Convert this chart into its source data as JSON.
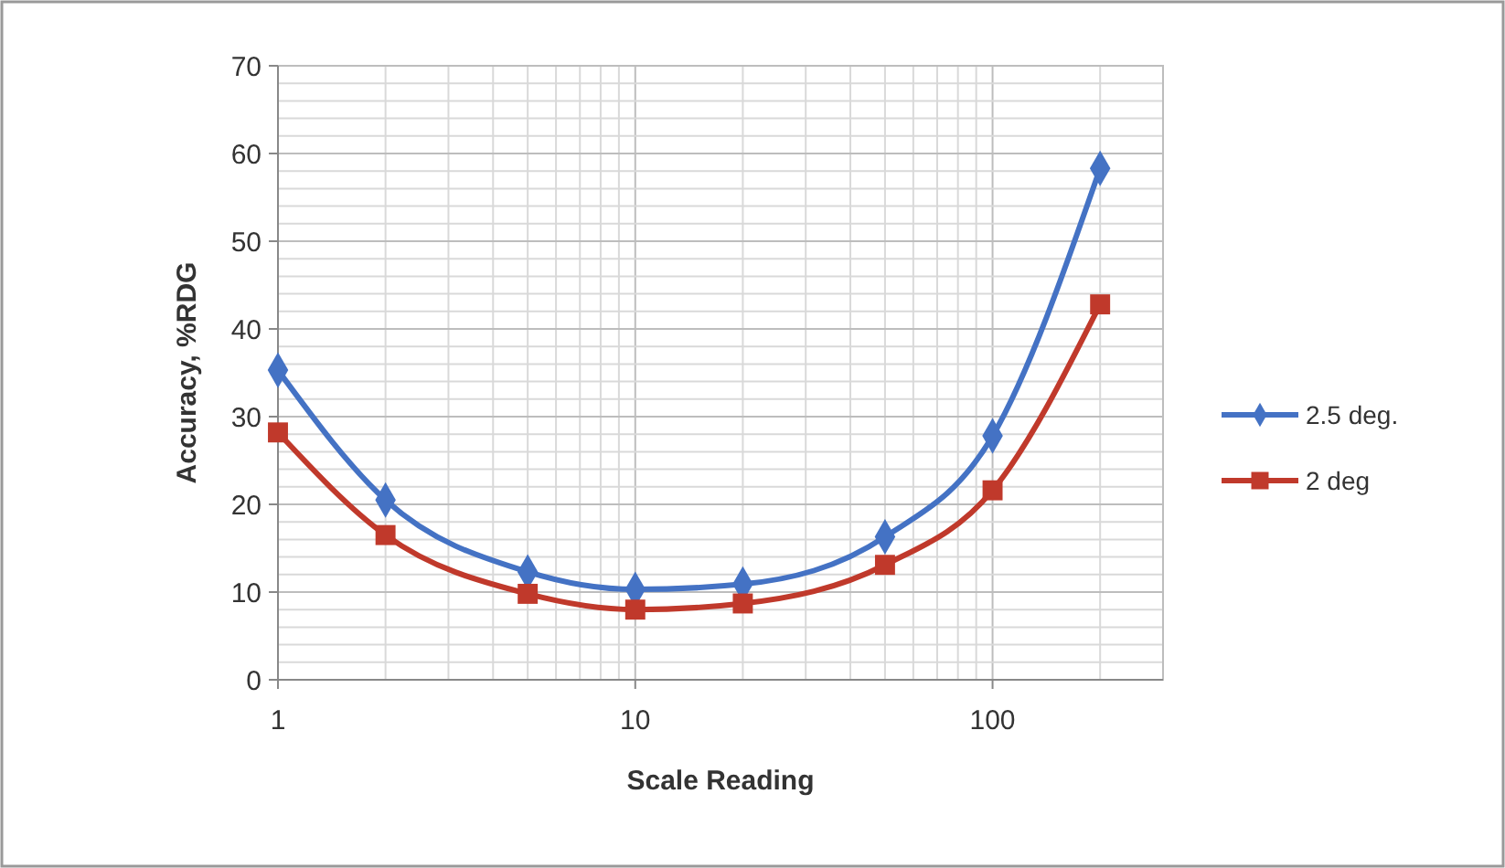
{
  "chart_data": {
    "type": "line",
    "xlabel": "Scale Reading",
    "ylabel": "Accuracy, %RDG",
    "x": [
      1,
      2,
      5,
      10,
      20,
      50,
      100,
      200
    ],
    "series": [
      {
        "name": "2.5 deg.",
        "color": "#4472c4",
        "marker": "diamond",
        "values": [
          35.3,
          20.5,
          12.3,
          10.3,
          10.9,
          16.3,
          27.8,
          58.3
        ]
      },
      {
        "name": "2 deg",
        "color": "#c0392b",
        "marker": "square",
        "values": [
          28.2,
          16.5,
          9.8,
          8.0,
          8.7,
          13.1,
          21.6,
          42.8
        ]
      }
    ],
    "log": "x",
    "xlim": [
      1,
      300
    ],
    "xticks": [
      1,
      {
        "value": 2,
        "label": null
      },
      {
        "value": 3,
        "label": null
      },
      {
        "value": 4,
        "label": null
      },
      {
        "value": 5,
        "label": null
      },
      {
        "value": 6,
        "label": null
      },
      {
        "value": 7,
        "label": null
      },
      {
        "value": 8,
        "label": null
      },
      {
        "value": 9,
        "label": null
      },
      10,
      {
        "value": 20,
        "label": null
      },
      {
        "value": 30,
        "label": null
      },
      {
        "value": 40,
        "label": null
      },
      {
        "value": 50,
        "label": null
      },
      {
        "value": 60,
        "label": null
      },
      {
        "value": 70,
        "label": null
      },
      {
        "value": 80,
        "label": null
      },
      {
        "value": 90,
        "label": null
      },
      100,
      {
        "value": 200,
        "label": null
      },
      {
        "value": 300,
        "label": null
      }
    ],
    "ylim": [
      0,
      70
    ],
    "yticks": [
      0,
      {
        "value": 2,
        "label": null
      },
      {
        "value": 4,
        "label": null
      },
      {
        "value": 6,
        "label": null
      },
      {
        "value": 8,
        "label": null
      },
      10,
      {
        "value": 12,
        "label": null
      },
      {
        "value": 14,
        "label": null
      },
      {
        "value": 16,
        "label": null
      },
      {
        "value": 18,
        "label": null
      },
      20,
      {
        "value": 22,
        "label": null
      },
      {
        "value": 24,
        "label": null
      },
      {
        "value": 26,
        "label": null
      },
      {
        "value": 28,
        "label": null
      },
      30,
      {
        "value": 32,
        "label": null
      },
      {
        "value": 34,
        "label": null
      },
      {
        "value": 36,
        "label": null
      },
      {
        "value": 38,
        "label": null
      },
      40,
      {
        "value": 42,
        "label": null
      },
      {
        "value": 44,
        "label": null
      },
      {
        "value": 46,
        "label": null
      },
      {
        "value": 48,
        "label": null
      },
      50,
      {
        "value": 52,
        "label": null
      },
      {
        "value": 54,
        "label": null
      },
      {
        "value": 56,
        "label": null
      },
      {
        "value": 58,
        "label": null
      },
      60,
      {
        "value": 62,
        "label": null
      },
      {
        "value": 64,
        "label": null
      },
      {
        "value": 66,
        "label": null
      },
      {
        "value": 68,
        "label": null
      },
      70
    ],
    "grid": true,
    "legend": "right",
    "line_style": "solid"
  }
}
